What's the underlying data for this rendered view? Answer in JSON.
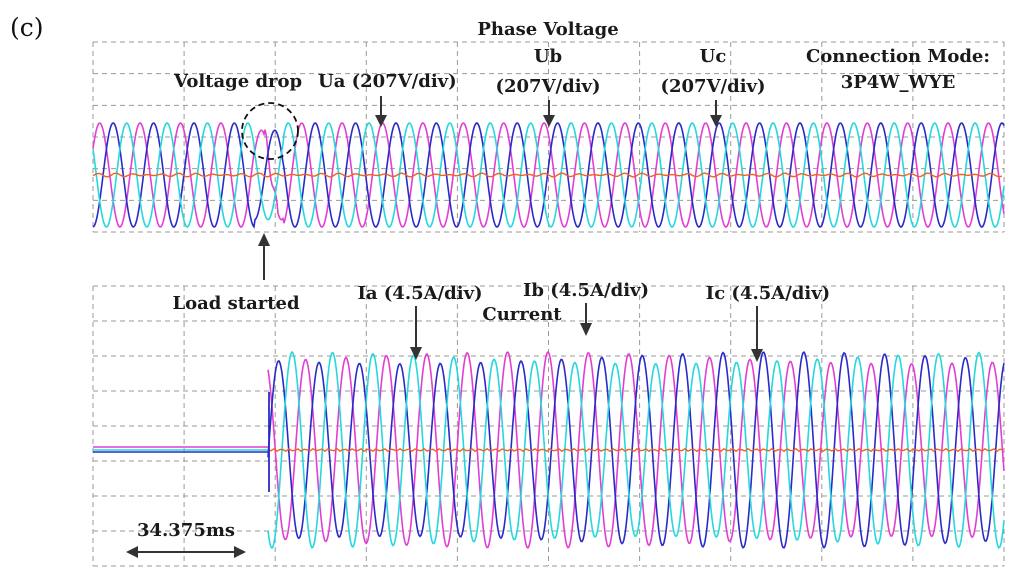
{
  "chart_data": {
    "type": "line",
    "panel_label": "(c)",
    "connection_mode": {
      "line1": "Connection Mode:",
      "line2": "3P4W_WYE"
    },
    "time_scale_label": "34.375ms",
    "colors": {
      "phase_a": "#e23fd2",
      "phase_b": "#2a2ac8",
      "phase_c": "#26d8dc",
      "neutral": "#f06020",
      "reference": "#2a9a3a",
      "grid": "#9a9a9a"
    },
    "voltage_panel": {
      "title": "Phase Voltage",
      "labels": {
        "voltage_drop": "Voltage drop",
        "ua": "Ua (207V/div)",
        "ub_name": "Ub",
        "ub_scale": "(207V/div)",
        "uc_name": "Uc",
        "uc_scale": "(207V/div)",
        "load_started": "Load started"
      }
    },
    "current_panel": {
      "title": "Current",
      "labels": {
        "ia": "Ia (4.5A/div)",
        "ib": "Ib (4.5A/div)",
        "ic": "Ic (4.5A/div)"
      }
    }
  }
}
